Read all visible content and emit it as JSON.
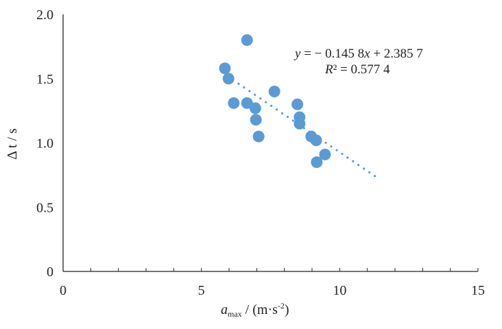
{
  "chart_data": {
    "type": "scatter",
    "title": "",
    "xlabel_main": "a",
    "xlabel_sub": "max",
    "xlabel_unit": " / (m·s",
    "xlabel_exp": "-2",
    "xlabel_close": ")",
    "ylabel": "Δ t / s",
    "xlim": [
      0,
      15
    ],
    "ylim": [
      0,
      2.0
    ],
    "x_ticks": [
      "0",
      "5",
      "10",
      "15"
    ],
    "x_tick_values": [
      0,
      5,
      10,
      15
    ],
    "y_ticks": [
      "0",
      "0.5",
      "1.0",
      "1.5",
      "2.0"
    ],
    "y_tick_values": [
      0,
      0.5,
      1.0,
      1.5,
      2.0
    ],
    "grid": false,
    "marker_color": "#5b9bd5",
    "points": [
      {
        "x": 5.85,
        "y": 1.58
      },
      {
        "x": 5.98,
        "y": 1.5
      },
      {
        "x": 6.17,
        "y": 1.31
      },
      {
        "x": 6.65,
        "y": 1.8
      },
      {
        "x": 6.65,
        "y": 1.31
      },
      {
        "x": 6.95,
        "y": 1.27
      },
      {
        "x": 6.97,
        "y": 1.18
      },
      {
        "x": 7.07,
        "y": 1.05
      },
      {
        "x": 7.64,
        "y": 1.4
      },
      {
        "x": 8.47,
        "y": 1.3
      },
      {
        "x": 8.55,
        "y": 1.2
      },
      {
        "x": 8.55,
        "y": 1.15
      },
      {
        "x": 8.97,
        "y": 1.05
      },
      {
        "x": 9.15,
        "y": 1.02
      },
      {
        "x": 9.17,
        "y": 0.85
      },
      {
        "x": 9.47,
        "y": 0.91
      }
    ],
    "trendline": {
      "slope": -0.1458,
      "intercept": 2.3857,
      "x_range": [
        5.95,
        11.3
      ],
      "style": "dotted"
    },
    "annotations": {
      "equation_y": "y",
      "equation_rest": " = − 0.145 8",
      "equation_x": "x",
      "equation_tail": " + 2.385 7",
      "r2_label": "R",
      "r2_rest": "² = 0.577 4"
    }
  }
}
